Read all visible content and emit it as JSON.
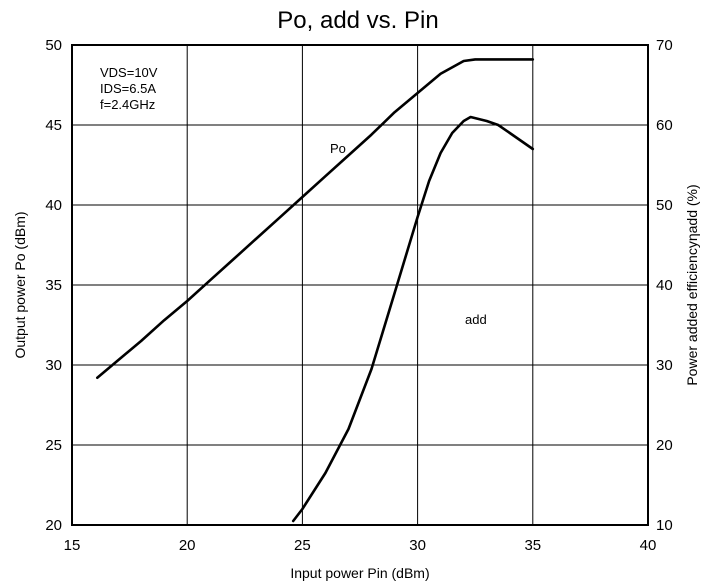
{
  "chart_data": {
    "type": "line",
    "title": "Po,  add vs. Pin",
    "xlabel": "Input power Pin (dBm)",
    "ylabel_left": "Output power Po (dBm)",
    "ylabel_right": "Power added efficiencyηadd (%)",
    "xlim": [
      15,
      40
    ],
    "ylim_left": [
      20,
      50
    ],
    "ylim_right": [
      10,
      70
    ],
    "x_ticks": [
      15,
      20,
      25,
      30,
      35,
      40
    ],
    "y_ticks_left": [
      20,
      25,
      30,
      35,
      40,
      45,
      50
    ],
    "y_ticks_right": [
      10,
      20,
      30,
      40,
      50,
      60,
      70
    ],
    "grid": true,
    "conditions": [
      "VDS=10V",
      "IDS=6.5A",
      "f=2.4GHz"
    ],
    "series": [
      {
        "name": "Po",
        "axis": "left",
        "x": [
          16.1,
          17,
          18,
          19,
          20,
          21,
          22,
          23,
          24,
          25,
          26,
          27,
          28,
          29,
          30,
          31,
          32,
          32.5,
          33,
          34,
          35
        ],
        "y": [
          29.2,
          30.3,
          31.5,
          32.8,
          34.0,
          35.3,
          36.6,
          37.9,
          39.2,
          40.5,
          41.8,
          43.1,
          44.4,
          45.8,
          47.0,
          48.2,
          49.0,
          49.1,
          49.1,
          49.1,
          49.1
        ]
      },
      {
        "name": "add",
        "axis": "right",
        "x": [
          24.6,
          25,
          26,
          27,
          28,
          29,
          30,
          30.5,
          31,
          31.5,
          32,
          32.3,
          33,
          33.5,
          34,
          35
        ],
        "y": [
          10.5,
          12,
          16.5,
          22,
          29.5,
          39,
          48.5,
          53,
          56.5,
          59,
          60.5,
          61,
          60.5,
          60,
          59,
          57
        ]
      }
    ]
  }
}
